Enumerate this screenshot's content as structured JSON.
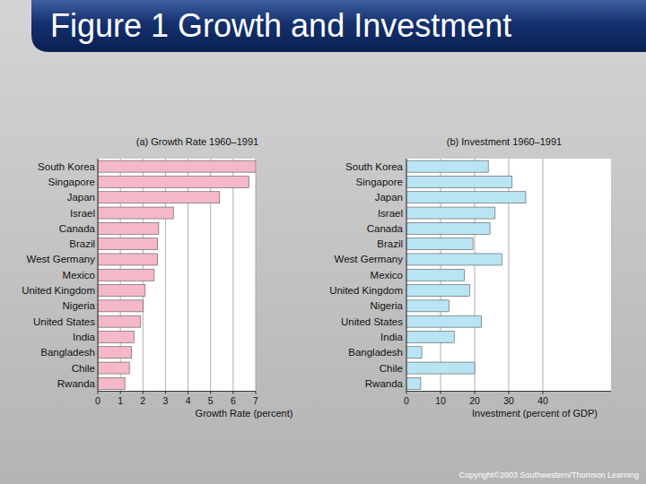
{
  "header": {
    "title": "Figure 1 Growth and Investment"
  },
  "footer": {
    "copyright": "Copyright©2003 Southwestern/Thomson Learning"
  },
  "chart_data": [
    {
      "type": "bar",
      "orientation": "horizontal",
      "title": "(a) Growth Rate 1960–1991",
      "x_label": "Growth Rate (percent)",
      "categories": [
        "South Korea",
        "Singapore",
        "Japan",
        "Israel",
        "Canada",
        "Brazil",
        "West Germany",
        "Mexico",
        "United Kingdom",
        "Nigeria",
        "United States",
        "India",
        "Bangladesh",
        "Chile",
        "Rwanda"
      ],
      "values": [
        7.0,
        6.7,
        5.4,
        3.35,
        2.7,
        2.65,
        2.65,
        2.5,
        2.1,
        2.0,
        1.9,
        1.6,
        1.5,
        1.4,
        1.2
      ],
      "color": "#f4b8c8",
      "xlim": [
        0,
        7
      ],
      "xticks": [
        0,
        1,
        2,
        3,
        4,
        5,
        6,
        7
      ],
      "grid": true
    },
    {
      "type": "bar",
      "orientation": "horizontal",
      "title": "(b) Investment 1960–1991",
      "x_label": "Investment (percent of GDP)",
      "categories": [
        "South Korea",
        "Singapore",
        "Japan",
        "Israel",
        "Canada",
        "Brazil",
        "West Germany",
        "Mexico",
        "United Kingdom",
        "Nigeria",
        "United States",
        "India",
        "Bangladesh",
        "Chile",
        "Rwanda"
      ],
      "values": [
        24,
        31,
        35,
        26,
        24.5,
        19.5,
        28,
        17,
        18.5,
        12.5,
        22,
        14,
        4.5,
        20,
        4.2
      ],
      "color": "#b8e4f4",
      "xlim": [
        0,
        60
      ],
      "xticks": [
        0,
        10,
        20,
        30,
        40
      ],
      "grid": true
    }
  ]
}
